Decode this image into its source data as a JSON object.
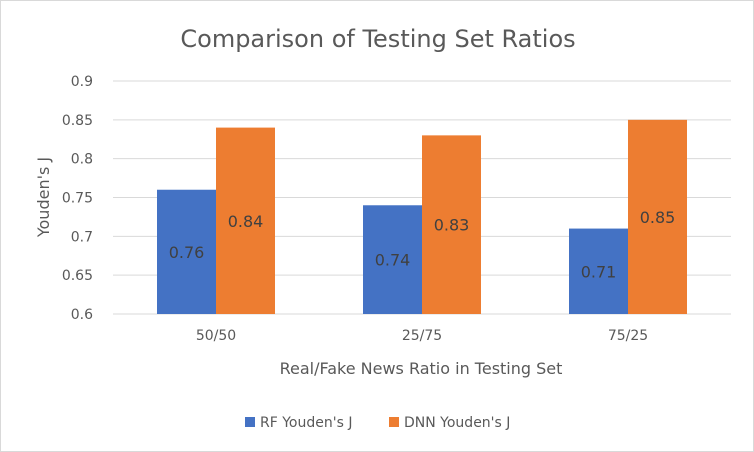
{
  "chart_data": {
    "type": "bar",
    "title": "Comparison of Testing Set Ratios",
    "xlabel": "Real/Fake News Ratio in Testing Set",
    "ylabel": "Youden's J",
    "categories": [
      "50/50",
      "25/75",
      "75/25"
    ],
    "ylim": [
      0.6,
      0.9
    ],
    "yticks": [
      "0.6",
      "0.65",
      "0.7",
      "0.75",
      "0.8",
      "0.85",
      "0.9"
    ],
    "grid": true,
    "legend_position": "bottom",
    "series": [
      {
        "name": "RF Youden's J",
        "color": "#4472c4",
        "values": [
          0.76,
          0.74,
          0.71
        ],
        "labels": [
          "0.76",
          "0.74",
          "0.71"
        ]
      },
      {
        "name": "DNN Youden's J",
        "color": "#ed7d31",
        "values": [
          0.84,
          0.83,
          0.85
        ],
        "labels": [
          "0.84",
          "0.83",
          "0.85"
        ]
      }
    ]
  }
}
